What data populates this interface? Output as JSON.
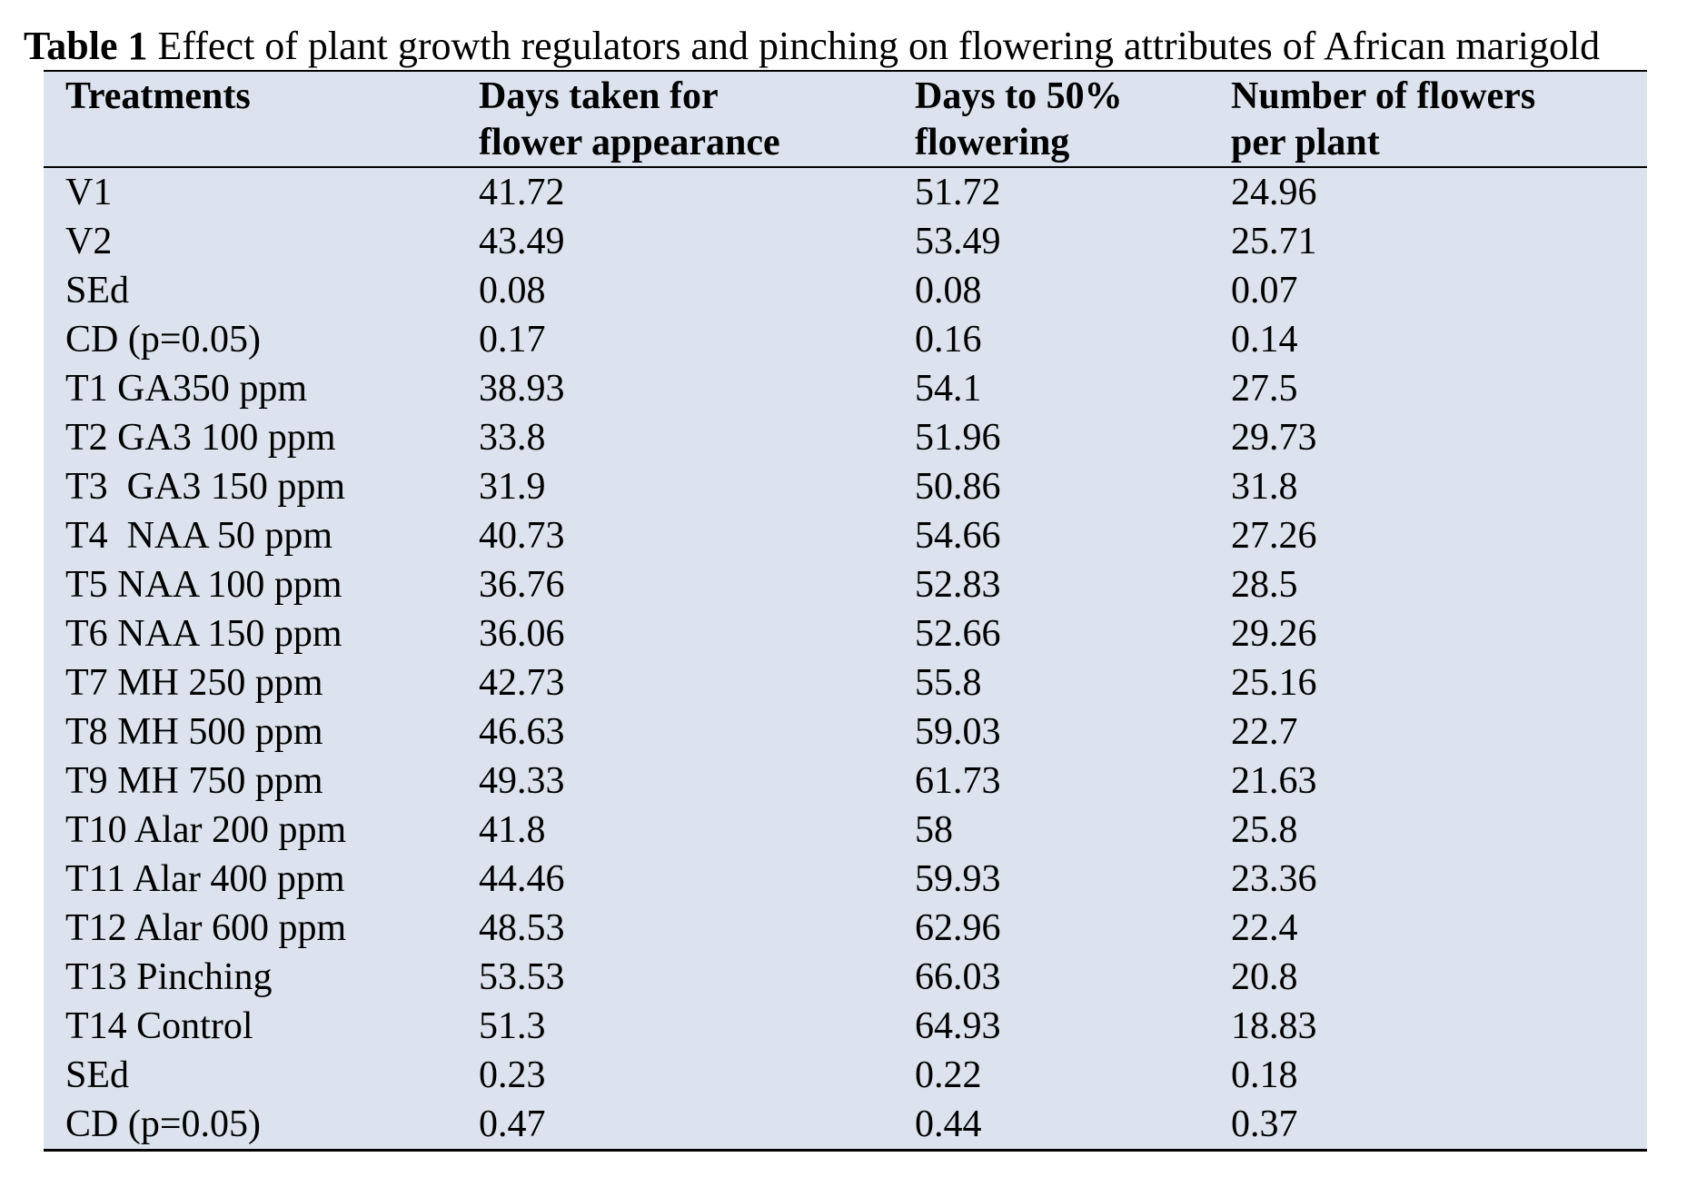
{
  "caption": {
    "label": "Table 1",
    "text": " Effect of plant growth regulators and pinching on flowering attributes of African marigold"
  },
  "table": {
    "headers": [
      [
        "Treatments",
        ""
      ],
      [
        "Days taken for",
        "flower appearance"
      ],
      [
        "Days to 50%",
        "flowering"
      ],
      [
        "Number of flowers",
        "per plant"
      ]
    ],
    "rows": [
      [
        "V1",
        "41.72",
        "51.72",
        "24.96"
      ],
      [
        "V2",
        "43.49",
        "53.49",
        "25.71"
      ],
      [
        "SEd",
        "0.08",
        "0.08",
        "0.07"
      ],
      [
        "CD (p=0.05)",
        "0.17",
        "0.16",
        "0.14"
      ],
      [
        "T1 GA350 ppm",
        "38.93",
        "54.1",
        "27.5"
      ],
      [
        "T2 GA3 100 ppm",
        "33.8",
        "51.96",
        "29.73"
      ],
      [
        "T3  GA3 150 ppm",
        "31.9",
        "50.86",
        "31.8"
      ],
      [
        "T4  NAA 50 ppm",
        "40.73",
        "54.66",
        "27.26"
      ],
      [
        "T5 NAA 100 ppm",
        "36.76",
        "52.83",
        "28.5"
      ],
      [
        "T6 NAA 150 ppm",
        "36.06",
        "52.66",
        "29.26"
      ],
      [
        "T7 MH 250 ppm",
        "42.73",
        "55.8",
        "25.16"
      ],
      [
        "T8 MH 500 ppm",
        "46.63",
        "59.03",
        "22.7"
      ],
      [
        "T9 MH 750 ppm",
        "49.33",
        "61.73",
        "21.63"
      ],
      [
        "T10 Alar 200 ppm",
        "41.8",
        "58",
        "25.8"
      ],
      [
        "T11 Alar 400 ppm",
        "44.46",
        "59.93",
        "23.36"
      ],
      [
        "T12 Alar 600 ppm",
        "48.53",
        "62.96",
        "22.4"
      ],
      [
        "T13 Pinching",
        "53.53",
        "66.03",
        "20.8"
      ],
      [
        "T14 Control",
        "51.3",
        "64.93",
        "18.83"
      ],
      [
        "SEd",
        "0.23",
        "0.22",
        "0.18"
      ],
      [
        "CD (p=0.05)",
        "0.47",
        "0.44",
        "0.37"
      ]
    ]
  }
}
